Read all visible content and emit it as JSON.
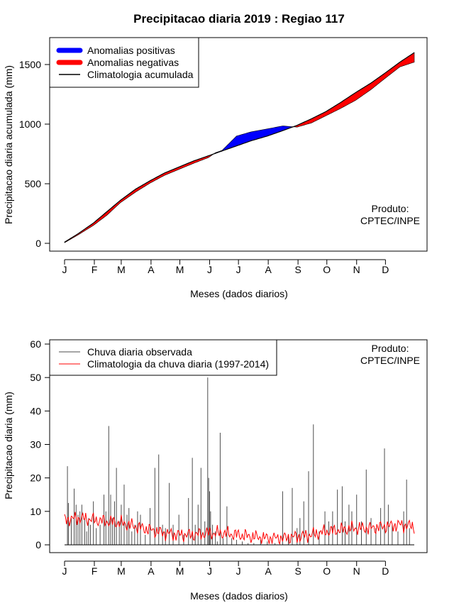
{
  "title": "Precipitacao diaria 2019 : Regiao 117",
  "product_label": [
    "Produto:",
    "CPTEC/INPE"
  ],
  "month_ticks": [
    "J",
    "F",
    "M",
    "A",
    "M",
    "J",
    "J",
    "A",
    "S",
    "O",
    "N",
    "D"
  ],
  "chart_data": [
    {
      "type": "area",
      "name": "accumulated",
      "xlabel": "Meses (dados diarios)",
      "ylabel": "Precipitacao diaria acumulada (mm)",
      "xlim": [
        0,
        365
      ],
      "ylim": [
        0,
        1720
      ],
      "yticks": [
        0,
        500,
        1000,
        1500
      ],
      "legend": {
        "placement": "top-left",
        "entries": [
          {
            "label": "Anomalias positivas",
            "color": "#0000ff",
            "kind": "thick-line"
          },
          {
            "label": "Anomalias negativas",
            "color": "#ff0000",
            "kind": "thick-line"
          },
          {
            "label": "Climatologia acumulada",
            "color": "#000000",
            "kind": "line"
          }
        ]
      },
      "climatology_accum": {
        "day": [
          1,
          15,
          31,
          45,
          59,
          75,
          90,
          105,
          120,
          135,
          151,
          165,
          181,
          195,
          212,
          228,
          243,
          258,
          273,
          288,
          304,
          320,
          334,
          350,
          365
        ],
        "mm": [
          10,
          80,
          170,
          265,
          360,
          455,
          525,
          590,
          640,
          690,
          735,
          775,
          820,
          860,
          900,
          945,
          990,
          1045,
          1105,
          1180,
          1265,
          1345,
          1425,
          1520,
          1600
        ]
      },
      "observed_accum": {
        "day": [
          1,
          15,
          31,
          45,
          59,
          75,
          90,
          105,
          120,
          135,
          151,
          158,
          165,
          180,
          195,
          212,
          228,
          243,
          258,
          273,
          288,
          304,
          320,
          334,
          350,
          365
        ],
        "mm": [
          5,
          70,
          150,
          235,
          340,
          430,
          505,
          570,
          620,
          670,
          720,
          760,
          780,
          900,
          935,
          960,
          985,
          975,
          1010,
          1070,
          1130,
          1200,
          1290,
          1380,
          1480,
          1520
        ]
      }
    },
    {
      "type": "bar",
      "name": "daily",
      "xlabel": "Meses (dados diarios)",
      "ylabel": "Precipitacao diaria (mm)",
      "xlim": [
        0,
        365
      ],
      "ylim": [
        0,
        60
      ],
      "yticks": [
        0,
        10,
        20,
        30,
        40,
        50,
        60
      ],
      "legend": {
        "placement": "top-left",
        "entries": [
          {
            "label": "Chuva diaria observada",
            "color": "#4d4d4d",
            "kind": "line"
          },
          {
            "label": "Climatologia da chuva diaria (1997-2014)",
            "color": "#ff0000",
            "kind": "line"
          }
        ]
      },
      "observed_peaks": {
        "day": [
          4,
          5,
          8,
          11,
          13,
          15,
          17,
          19,
          22,
          24,
          26,
          28,
          31,
          34,
          38,
          42,
          44,
          47,
          49,
          51,
          53,
          55,
          58,
          60,
          63,
          66,
          68,
          71,
          74,
          77,
          80,
          85,
          90,
          95,
          99,
          103,
          106,
          110,
          114,
          120,
          125,
          130,
          134,
          137,
          140,
          143,
          147,
          150,
          151,
          152,
          153,
          155,
          158,
          160,
          163,
          166,
          170,
          175,
          180,
          186,
          192,
          198,
          205,
          212,
          220,
          228,
          234,
          238,
          243,
          246,
          250,
          255,
          260,
          266,
          272,
          276,
          280,
          285,
          290,
          293,
          297,
          300,
          305,
          310,
          315,
          320,
          325,
          330,
          334,
          338,
          342,
          348,
          354,
          357,
          360
        ],
        "mm": [
          23.5,
          12.5,
          8,
          16.8,
          12,
          9,
          10,
          12,
          8,
          4,
          8,
          6,
          13,
          5,
          6,
          15,
          10,
          35.5,
          15,
          8,
          13,
          23,
          7,
          12,
          18,
          9,
          11,
          4,
          6,
          10,
          9,
          3,
          11,
          23,
          27,
          6,
          5,
          18.5,
          6,
          9,
          3,
          14,
          26,
          6,
          12,
          23,
          7,
          50,
          20,
          16,
          10,
          6,
          4,
          1,
          33.5,
          2,
          11.5,
          2,
          1.5,
          1,
          0.5,
          0.5,
          1.5,
          1,
          0.5,
          16,
          3,
          17,
          5,
          8,
          13,
          22,
          36,
          4,
          10,
          7,
          10,
          16.5,
          17.5,
          7,
          12,
          10,
          15,
          7,
          22.5,
          8,
          5,
          11,
          28.8,
          12,
          6,
          4,
          10,
          19.5,
          5
        ]
      },
      "climatology_daily": {
        "day": [
          1,
          15,
          31,
          45,
          60,
          75,
          90,
          105,
          120,
          135,
          150,
          165,
          181,
          195,
          212,
          228,
          243,
          258,
          273,
          288,
          304,
          320,
          334,
          350,
          365
        ],
        "mm": [
          7.5,
          8,
          7.5,
          7,
          6.5,
          5.5,
          4.5,
          3.5,
          3,
          3,
          3.5,
          3.5,
          3,
          2.5,
          2,
          2,
          2.5,
          3,
          4,
          4.5,
          5,
          5,
          5.5,
          6,
          5.5
        ]
      }
    }
  ]
}
